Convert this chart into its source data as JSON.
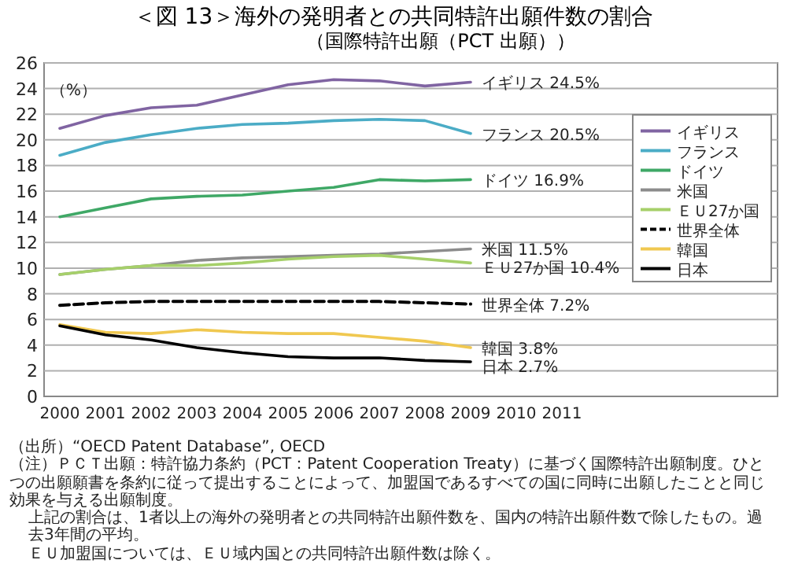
{
  "chart_data": {
    "type": "line",
    "title": "＜図 13＞海外の発明者との共同特許出願件数の割合",
    "subtitle": "（国際特許出願（PCT 出願））",
    "ylabel": "（%）",
    "categories": [
      "2000",
      "2001",
      "2002",
      "2003",
      "2004",
      "2005",
      "2006",
      "2007",
      "2008",
      "2009",
      "2010",
      "2011"
    ],
    "series": [
      {
        "name": "イギリス",
        "color": "#8064a2",
        "values": [
          20.9,
          21.9,
          22.5,
          22.7,
          23.5,
          24.3,
          24.7,
          24.6,
          24.2,
          24.5,
          null,
          null
        ]
      },
      {
        "name": "フランス",
        "color": "#4bacc6",
        "values": [
          18.8,
          19.8,
          20.4,
          20.9,
          21.2,
          21.3,
          21.5,
          21.6,
          21.5,
          20.5,
          null,
          null
        ]
      },
      {
        "name": "ドイツ",
        "color": "#3fa866",
        "values": [
          14.0,
          14.7,
          15.4,
          15.6,
          15.7,
          16.0,
          16.3,
          16.9,
          16.8,
          16.9,
          null,
          null
        ]
      },
      {
        "name": "米国",
        "color": "#8c8c8c",
        "values": [
          9.5,
          9.9,
          10.2,
          10.6,
          10.8,
          10.9,
          11.0,
          11.1,
          11.3,
          11.5,
          null,
          null
        ]
      },
      {
        "name": "ＥＵ27か国",
        "color": "#a6d06a",
        "values": [
          9.5,
          9.9,
          10.2,
          10.2,
          10.4,
          10.7,
          10.9,
          11.0,
          10.7,
          10.4,
          null,
          null
        ]
      },
      {
        "name": "世界全体",
        "color": "#000000",
        "line_style": "dashed",
        "values": [
          7.1,
          7.3,
          7.4,
          7.4,
          7.4,
          7.4,
          7.4,
          7.4,
          7.3,
          7.2,
          null,
          null
        ]
      },
      {
        "name": "韓国",
        "color": "#f0c850",
        "values": [
          5.6,
          5.0,
          4.9,
          5.2,
          5.0,
          4.9,
          4.9,
          4.6,
          4.3,
          3.8,
          null,
          null
        ]
      },
      {
        "name": "日本",
        "color": "#000000",
        "values": [
          5.5,
          4.8,
          4.4,
          3.8,
          3.4,
          3.1,
          3.0,
          3.0,
          2.8,
          2.7,
          null,
          null
        ]
      }
    ],
    "ylim": [
      0,
      26
    ],
    "yticks": [
      0,
      2,
      4,
      6,
      8,
      10,
      12,
      14,
      16,
      18,
      20,
      22,
      24,
      26
    ],
    "grid": "y",
    "legend": "right",
    "marker": "none",
    "line_style": "solid",
    "annotations": [
      {
        "text": "イギリス 24.5%",
        "x": "2009",
        "y": 24.5
      },
      {
        "text": "フランス 20.5%",
        "x": "2009",
        "y": 20.5
      },
      {
        "text": "ドイツ 16.9%",
        "x": "2009",
        "y": 16.9
      },
      {
        "text": "米国 11.5%",
        "x": "2009",
        "y": 11.5
      },
      {
        "text": "ＥＵ27か国 10.4%",
        "x": "2009",
        "y": 10.4
      },
      {
        "text": "世界全体 7.2%",
        "x": "2009",
        "y": 7.2
      },
      {
        "text": "韓国 3.8%",
        "x": "2009",
        "y": 3.8
      },
      {
        "text": "日本 2.7%",
        "x": "2009",
        "y": 2.7
      },
      "（出所）“OECD Patent Database”, OECD",
      "（注）ＰＣＴ出願：特許協力条約（PCT：Patent Cooperation Treaty）に基づく国際特許出願制度。ひとつの出願願書を条約に従って提出することによって、加盟国であるすべての国に同時に出願したことと同じ効果を与える出願制度。",
      "上記の割合は、1者以上の海外の発明者との共同特許出願件数を、国内の特許出願件数で除したもの。過去3年間の平均。",
      "ＥＵ加盟国については、ＥＵ域内国との共同特許出願件数は除く。"
    ]
  }
}
